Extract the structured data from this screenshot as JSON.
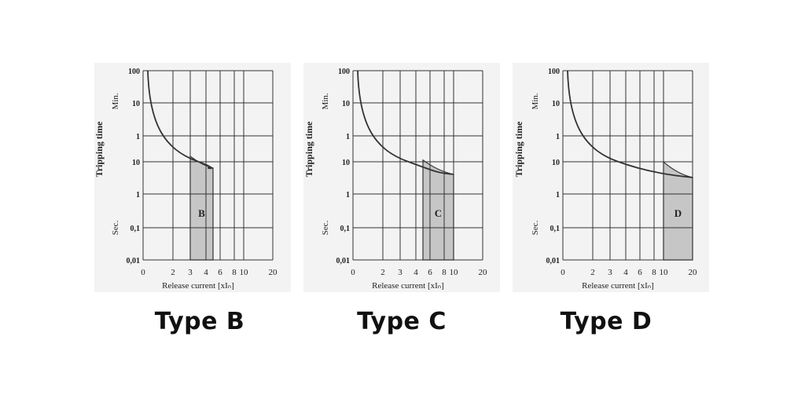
{
  "chart_data": [
    {
      "type": "line",
      "name": "Type B",
      "ylabel": "Tripping time",
      "unit_upper": "Min.",
      "unit_lower": "Sec.",
      "xlabel": "Release current [xIₙ]",
      "x_ticks": [
        "0",
        "2",
        "3",
        "4",
        "6",
        "8",
        "10",
        "20"
      ],
      "y_ticks_min": [
        "100",
        "10",
        "1"
      ],
      "y_ticks_sec": [
        "10",
        "1",
        "0,1",
        "0,01"
      ],
      "region_label": "B",
      "region_x": [
        3,
        5
      ],
      "curve_end_x": 5,
      "caption": "Type B"
    },
    {
      "type": "line",
      "name": "Type C",
      "ylabel": "Tripping time",
      "unit_upper": "Min.",
      "unit_lower": "Sec.",
      "xlabel": "Release current [xIₙ]",
      "x_ticks": [
        "0",
        "2",
        "3",
        "4",
        "6",
        "8",
        "10",
        "20"
      ],
      "y_ticks_min": [
        "100",
        "10",
        "1"
      ],
      "y_ticks_sec": [
        "10",
        "1",
        "0,1",
        "0,01"
      ],
      "region_label": "C",
      "region_x": [
        5,
        10
      ],
      "curve_end_x": 10,
      "caption": "Type C"
    },
    {
      "type": "line",
      "name": "Type D",
      "ylabel": "Tripping time",
      "unit_upper": "Min.",
      "unit_lower": "Sec.",
      "xlabel": "Release current [xIₙ]",
      "x_ticks": [
        "0",
        "2",
        "3",
        "4",
        "6",
        "8",
        "10",
        "20"
      ],
      "y_ticks_min": [
        "100",
        "10",
        "1"
      ],
      "y_ticks_sec": [
        "10",
        "1",
        "0,1",
        "0,01"
      ],
      "region_label": "D",
      "region_x": [
        10,
        20
      ],
      "curve_end_x": 20,
      "caption": "Type D"
    }
  ],
  "colors": {
    "grid": "#333333",
    "curve": "#333333",
    "region_fill": "#c6c6c6",
    "panel_bg": "#f3f3f3"
  }
}
